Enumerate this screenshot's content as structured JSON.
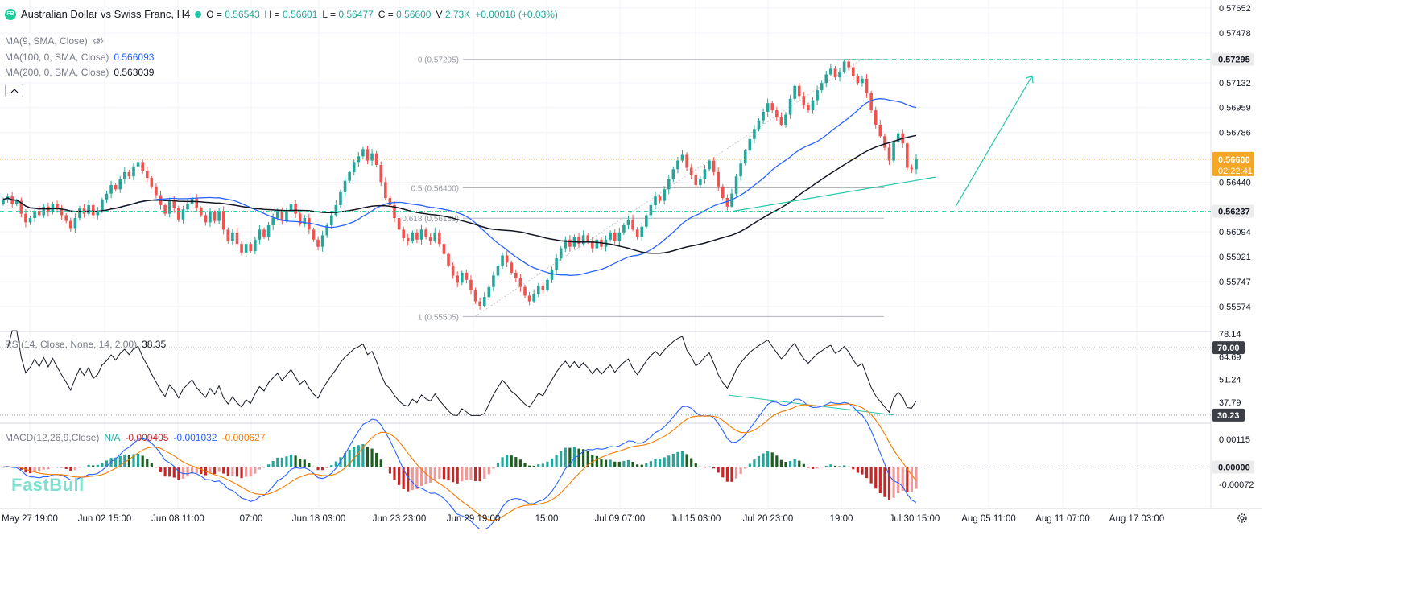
{
  "header": {
    "logo": "FB",
    "title": "Australian Dollar vs Swiss Franc, H4",
    "open_label": "O",
    "open": "0.56543",
    "high_label": "H",
    "high": "0.56601",
    "low_label": "L",
    "low": "0.56477",
    "close_label": "C",
    "close": "0.56600",
    "volume_label": "V",
    "volume": "2.73K",
    "change": "+0.00018 (+0.03%)"
  },
  "indicators": {
    "ma9": {
      "label": "MA(9, SMA, Close)",
      "icon": "eye-off-icon"
    },
    "ma100": {
      "label": "MA(100, 0, SMA, Close)",
      "value": "0.566093",
      "color": "#2962ff"
    },
    "ma200": {
      "label": "MA(200, 0, SMA, Close)",
      "value": "0.563039",
      "color": "#131722"
    }
  },
  "rsi": {
    "label": "RSI(14, Close, None, 14, 2.00)",
    "value": "38.35"
  },
  "macd": {
    "label": "MACD(12,26,9,Close)",
    "na": "N/A",
    "hist": "-0.000405",
    "macd": "-0.001032",
    "signal": "-0.000627"
  },
  "watermark": "FastBull",
  "colors": {
    "up": "#26a69a",
    "down": "#ef5350",
    "ma100": "#2962ff",
    "ma200": "#131722",
    "drawing": "#26c6a9",
    "price_tag": "#f5a623",
    "macd_line": "#2962ff",
    "signal_line": "#f57c00"
  },
  "chart_data": {
    "type": "candlestick",
    "symbol": "Australian Dollar vs Swiss Franc",
    "timeframe": "H4",
    "x_labels": [
      "May 27 19:00",
      "Jun 02 15:00",
      "Jun 08 11:00",
      "07:00",
      "Jun 18 03:00",
      "Jun 23 23:00",
      "Jun 29 19:00",
      "15:00",
      "Jul 09 07:00",
      "Jul 15 03:00",
      "Jul 20 23:00",
      "19:00",
      "Jul 30 15:00",
      "Aug 05 11:00",
      "Aug 11 07:00",
      "Aug 17 03:00"
    ],
    "price_axis": [
      "0.57652",
      "0.57478",
      "0.57132",
      "0.56959",
      "0.56786",
      "0.56440",
      "0.56094",
      "0.55921",
      "0.55747",
      "0.55574"
    ],
    "price_tags": {
      "fib_high": "0.57295",
      "current": "0.56600",
      "countdown": "02:22:41",
      "line": "0.56237"
    },
    "fibonacci": [
      {
        "label": "0 (0.57295)",
        "level": 0.57295
      },
      {
        "label": "0.5 (0.56400)",
        "level": 0.564
      },
      {
        "label": "0.618 (0.56189)",
        "level": 0.56189
      },
      {
        "label": "1 (0.55505)",
        "level": 0.55505
      }
    ],
    "closes": [
      0.5632,
      0.5634,
      0.5629,
      0.5631,
      0.5622,
      0.5616,
      0.5619,
      0.5624,
      0.5621,
      0.5627,
      0.5623,
      0.5629,
      0.5625,
      0.5621,
      0.5617,
      0.5612,
      0.5619,
      0.5626,
      0.5622,
      0.5628,
      0.5621,
      0.5624,
      0.5632,
      0.5636,
      0.5642,
      0.5639,
      0.5646,
      0.5651,
      0.5648,
      0.5655,
      0.5658,
      0.5652,
      0.5647,
      0.5641,
      0.5635,
      0.5628,
      0.5622,
      0.5631,
      0.5626,
      0.5618,
      0.5625,
      0.5629,
      0.5633,
      0.5626,
      0.5621,
      0.5616,
      0.5623,
      0.5617,
      0.5624,
      0.5611,
      0.5603,
      0.5609,
      0.5601,
      0.5595,
      0.5601,
      0.5596,
      0.5604,
      0.5611,
      0.5606,
      0.5614,
      0.5619,
      0.5624,
      0.5617,
      0.5623,
      0.5629,
      0.5622,
      0.5615,
      0.5619,
      0.5611,
      0.5604,
      0.5599,
      0.5607,
      0.5614,
      0.5621,
      0.5628,
      0.5637,
      0.5645,
      0.5651,
      0.5658,
      0.5662,
      0.5667,
      0.5659,
      0.5664,
      0.5656,
      0.5644,
      0.5633,
      0.5628,
      0.5619,
      0.5611,
      0.5605,
      0.5603,
      0.5609,
      0.5604,
      0.5611,
      0.5606,
      0.5603,
      0.5609,
      0.5601,
      0.5594,
      0.5586,
      0.5579,
      0.5574,
      0.5581,
      0.5576,
      0.5569,
      0.5561,
      0.5558,
      0.5564,
      0.5571,
      0.5579,
      0.5586,
      0.5593,
      0.5588,
      0.5581,
      0.5577,
      0.5571,
      0.5565,
      0.5561,
      0.5566,
      0.5572,
      0.5569,
      0.5576,
      0.5583,
      0.5591,
      0.5598,
      0.5604,
      0.5599,
      0.5606,
      0.5601,
      0.5607,
      0.5603,
      0.5598,
      0.5604,
      0.5599,
      0.5604,
      0.5609,
      0.5603,
      0.5609,
      0.5614,
      0.5618,
      0.5611,
      0.5606,
      0.5613,
      0.5621,
      0.5628,
      0.5634,
      0.5631,
      0.5639,
      0.5646,
      0.5653,
      0.5659,
      0.5663,
      0.5654,
      0.5649,
      0.5642,
      0.5646,
      0.5653,
      0.5659,
      0.5651,
      0.5641,
      0.5633,
      0.5627,
      0.5636,
      0.5648,
      0.5657,
      0.5666,
      0.5674,
      0.5681,
      0.5687,
      0.5693,
      0.5699,
      0.5694,
      0.5689,
      0.5684,
      0.5691,
      0.5702,
      0.5711,
      0.5704,
      0.5698,
      0.5694,
      0.5701,
      0.5708,
      0.5713,
      0.5719,
      0.5723,
      0.5717,
      0.5721,
      0.5728,
      0.5724,
      0.5718,
      0.5713,
      0.5716,
      0.5706,
      0.5694,
      0.5684,
      0.5676,
      0.5668,
      0.5659,
      0.5672,
      0.5678,
      0.5671,
      0.5654,
      0.5653,
      0.566
    ],
    "ma100_value": 0.566093,
    "ma200_value": 0.563039,
    "rsi": {
      "levels": {
        "upper": "70.00",
        "lower": "30.23"
      },
      "axis": [
        "78.14",
        "64.69",
        "51.24",
        "37.79"
      ],
      "last": 38.35
    },
    "macd": {
      "axis": [
        "0.00115",
        "0.00000",
        "-0.00072"
      ],
      "last": {
        "histogram": -0.000405,
        "macd": -0.001032,
        "signal": -0.000627
      }
    }
  }
}
